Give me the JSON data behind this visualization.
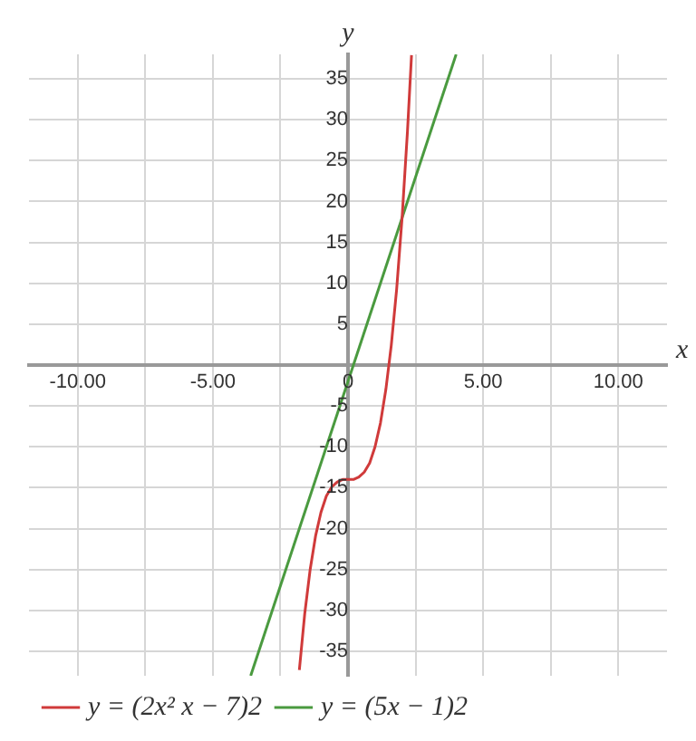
{
  "chart_data": {
    "type": "line",
    "xlabel": "x",
    "ylabel": "y",
    "xlim": [
      -11.8,
      11.8
    ],
    "ylim": [
      -38,
      38
    ],
    "xticks": [
      {
        "value": -10,
        "label": "-10.00"
      },
      {
        "value": -7.5,
        "label": null
      },
      {
        "value": -5,
        "label": "-5.00"
      },
      {
        "value": -2.5,
        "label": null
      },
      0,
      {
        "value": 2.5,
        "label": null
      },
      {
        "value": 5,
        "label": "5.00"
      },
      {
        "value": 7.5,
        "label": null
      },
      {
        "value": 10,
        "label": "10.00"
      }
    ],
    "yticks": [
      -35,
      -30,
      -25,
      -20,
      -15,
      -10,
      -5,
      5,
      10,
      15,
      20,
      25,
      30,
      35
    ],
    "grid": true,
    "legend": "bottom",
    "marker": "none",
    "line_style": "solid",
    "series": [
      {
        "name": "y = (2x² x − 7)2",
        "color": "#d03a3a",
        "x": [
          -1.8,
          -1.6,
          -1.4,
          -1.2,
          -1.0,
          -0.8,
          -0.6,
          -0.4,
          -0.2,
          0,
          0.2,
          0.4,
          0.6,
          0.8,
          1.0,
          1.2,
          1.4,
          1.6,
          1.8,
          2.0,
          2.2,
          2.35
        ],
        "values": [
          -37.3,
          -30.4,
          -25.0,
          -20.9,
          -18.0,
          -16.0,
          -14.9,
          -14.3,
          -14.0,
          -14.0,
          -14.0,
          -13.7,
          -13.1,
          -12.0,
          -10.0,
          -7.1,
          -3.0,
          2.4,
          9.3,
          18.0,
          28.6,
          37.9
        ]
      },
      {
        "name": "y = (5x − 1)2",
        "color": "#4a9a3f",
        "x": [
          -3.6,
          4.0
        ],
        "values": [
          -38,
          38
        ]
      }
    ]
  }
}
